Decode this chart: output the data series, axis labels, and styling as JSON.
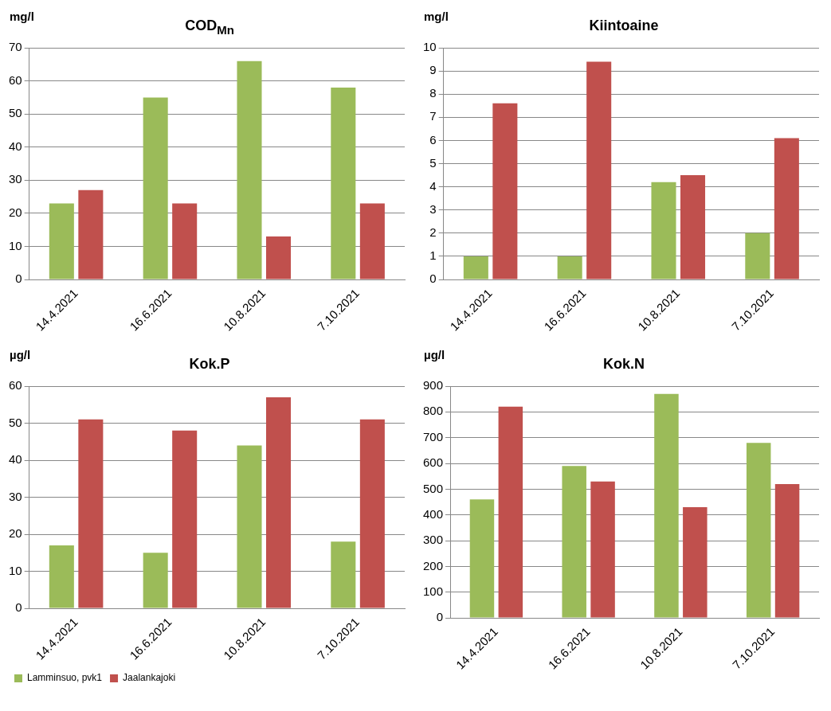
{
  "chart_data": [
    {
      "type": "bar",
      "title": "COD$_{Mn}$",
      "ylabel": "mg/l",
      "categories": [
        "14.4.2021",
        "16.6.2021",
        "10.8.2021",
        "7.10.2021"
      ],
      "series": [
        {
          "color": "#9bbb59",
          "values": [
            23,
            55,
            66,
            58
          ]
        },
        {
          "color": "#c0504d",
          "values": [
            27,
            23,
            13,
            23
          ]
        }
      ],
      "ylim": [
        0,
        70
      ],
      "yticks": [
        0,
        10,
        20,
        30,
        40,
        50,
        60,
        70
      ],
      "grid": "y",
      "legend": false
    },
    {
      "type": "bar",
      "title": "Kiintoaine",
      "ylabel": "mg/l",
      "categories": [
        "14.4.2021",
        "16.6.2021",
        "10.8.2021",
        "7.10.2021"
      ],
      "series": [
        {
          "color": "#9bbb59",
          "values": [
            1,
            1,
            4.2,
            2
          ]
        },
        {
          "color": "#c0504d",
          "values": [
            7.6,
            9.4,
            4.5,
            6.1
          ]
        }
      ],
      "ylim": [
        0,
        10
      ],
      "yticks": [
        0,
        1,
        2,
        3,
        4,
        5,
        6,
        7,
        8,
        9,
        10
      ],
      "grid": "y",
      "legend": false
    },
    {
      "type": "bar",
      "title": "Kok.P",
      "ylabel": "µg/l",
      "categories": [
        "14.4.2021",
        "16.6.2021",
        "10.8.2021",
        "7.10.2021"
      ],
      "series": [
        {
          "name": "Lamminsuo, pvk1",
          "color": "#9bbb59",
          "values": [
            17,
            15,
            44,
            18
          ]
        },
        {
          "name": "Jaalankajoki",
          "color": "#c0504d",
          "values": [
            51,
            48,
            57,
            51
          ]
        }
      ],
      "ylim": [
        0,
        60
      ],
      "yticks": [
        0,
        10,
        20,
        30,
        40,
        50,
        60
      ],
      "grid": "y",
      "legend": "bottom"
    },
    {
      "type": "bar",
      "title": "Kok.N",
      "ylabel": "µg/l",
      "categories": [
        "14.4.2021",
        "16.6.2021",
        "10.8.2021",
        "7.10.2021"
      ],
      "series": [
        {
          "color": "#9bbb59",
          "values": [
            460,
            590,
            870,
            680
          ]
        },
        {
          "color": "#c0504d",
          "values": [
            820,
            530,
            430,
            520
          ]
        }
      ],
      "ylim": [
        0,
        900
      ],
      "yticks": [
        0,
        100,
        200,
        300,
        400,
        500,
        600,
        700,
        800,
        900
      ],
      "grid": "y",
      "legend": false
    }
  ]
}
